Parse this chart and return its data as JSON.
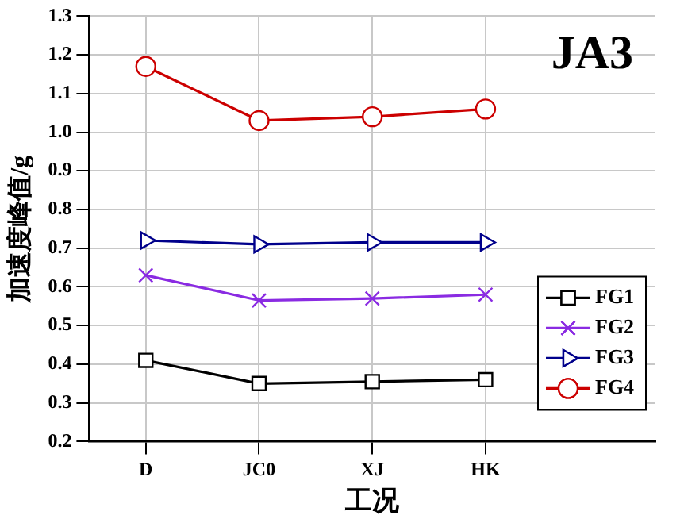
{
  "chart_data": {
    "type": "line",
    "xlabel": "工况",
    "ylabel": "加速度峰值/g",
    "annotations": [
      "JA3"
    ],
    "categories": [
      "D",
      "JC0",
      "XJ",
      "HK"
    ],
    "series": [
      {
        "name": "FG1",
        "color": "#000000",
        "marker": "square",
        "values": [
          0.41,
          0.35,
          0.355,
          0.36
        ]
      },
      {
        "name": "FG2",
        "color": "#8a2be2",
        "marker": "cross",
        "values": [
          0.63,
          0.565,
          0.57,
          0.58
        ]
      },
      {
        "name": "FG3",
        "color": "#00008b",
        "marker": "triangle",
        "values": [
          0.72,
          0.71,
          0.715,
          0.715
        ]
      },
      {
        "name": "FG4",
        "color": "#cc0000",
        "marker": "circle",
        "values": [
          1.17,
          1.03,
          1.04,
          1.06
        ]
      }
    ],
    "ylim": [
      0.2,
      1.3
    ],
    "yticks": [
      0.2,
      0.3,
      0.4,
      0.5,
      0.6,
      0.7,
      0.8,
      0.9,
      {
        "value": 1,
        "label": "1.0"
      },
      1.1,
      1.2,
      1.3
    ],
    "grid": true,
    "legend": "bottom right"
  }
}
